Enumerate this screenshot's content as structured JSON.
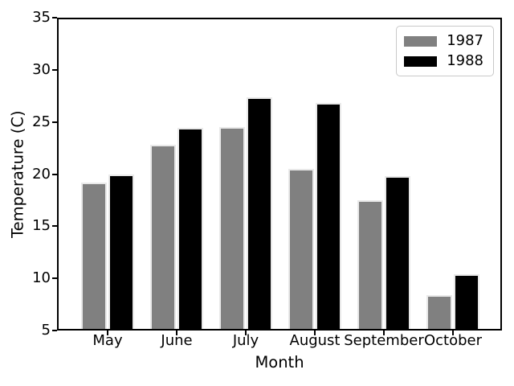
{
  "chart_data": {
    "type": "bar",
    "title": "",
    "xlabel": "Month",
    "ylabel": "Temperature (C)",
    "categories": [
      "May",
      "June",
      "July",
      "August",
      "September",
      "October"
    ],
    "series": [
      {
        "name": "1987",
        "color": "#808080",
        "values": [
          19.2,
          22.8,
          24.5,
          20.5,
          17.5,
          8.4
        ]
      },
      {
        "name": "1988",
        "color": "#000000",
        "values": [
          20.0,
          24.4,
          27.4,
          26.8,
          19.8,
          10.4
        ]
      }
    ],
    "ylim": [
      5,
      35
    ],
    "yticks": [
      5,
      10,
      15,
      20,
      25,
      30,
      35
    ],
    "grid": false,
    "legend_position": "upper right",
    "background": "#ffffff",
    "axis_color": "#000000",
    "bar_edge_color": "#e9e9e9",
    "legend_border_color": "#c9c9c9"
  }
}
